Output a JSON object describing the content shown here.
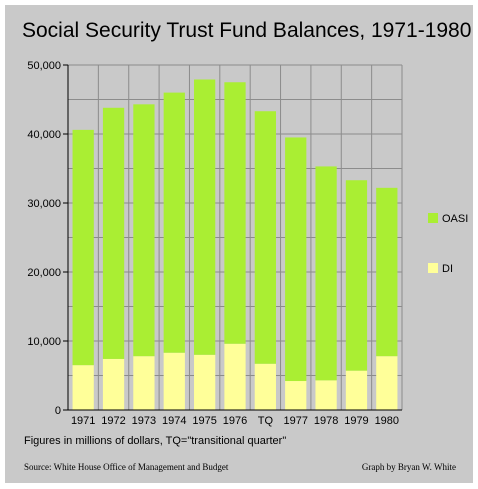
{
  "colors": {
    "background": "#c9c9c9",
    "oasi": "#aaee33",
    "di": "#ffff99",
    "grid": "#8c8c8c"
  },
  "chart_data": {
    "type": "bar",
    "stacked": true,
    "title": "Social Security Trust Fund Balances, 1971-1980",
    "xlabel": "",
    "ylabel": "",
    "categories": [
      "1971",
      "1972",
      "1973",
      "1974",
      "1975",
      "1976",
      "TQ",
      "1977",
      "1978",
      "1979",
      "1980"
    ],
    "series": [
      {
        "name": "DI",
        "color": "#ffff99",
        "values": [
          6500,
          7400,
          7800,
          8300,
          8000,
          9600,
          6700,
          4200,
          4300,
          5700,
          7800
        ]
      },
      {
        "name": "OASI",
        "color": "#aaee33",
        "values": [
          34100,
          36400,
          36500,
          37700,
          39900,
          37900,
          36600,
          35300,
          31000,
          27600,
          24400
        ]
      }
    ],
    "ylim": [
      0,
      50000
    ],
    "yticks": [
      0,
      10000,
      20000,
      30000,
      40000,
      50000
    ],
    "ytick_labels": [
      "0",
      "10,000",
      "20,000",
      "30,000",
      "40,000",
      "50,000"
    ],
    "grid": true,
    "legend": {
      "placement": "right",
      "entries": [
        "OASI",
        "DI"
      ]
    }
  },
  "note": "Figures in millions of dollars, TQ=\"transitional quarter\"",
  "source": "Source: White House Office of Management and Budget",
  "credit": "Graph by Bryan W. White"
}
